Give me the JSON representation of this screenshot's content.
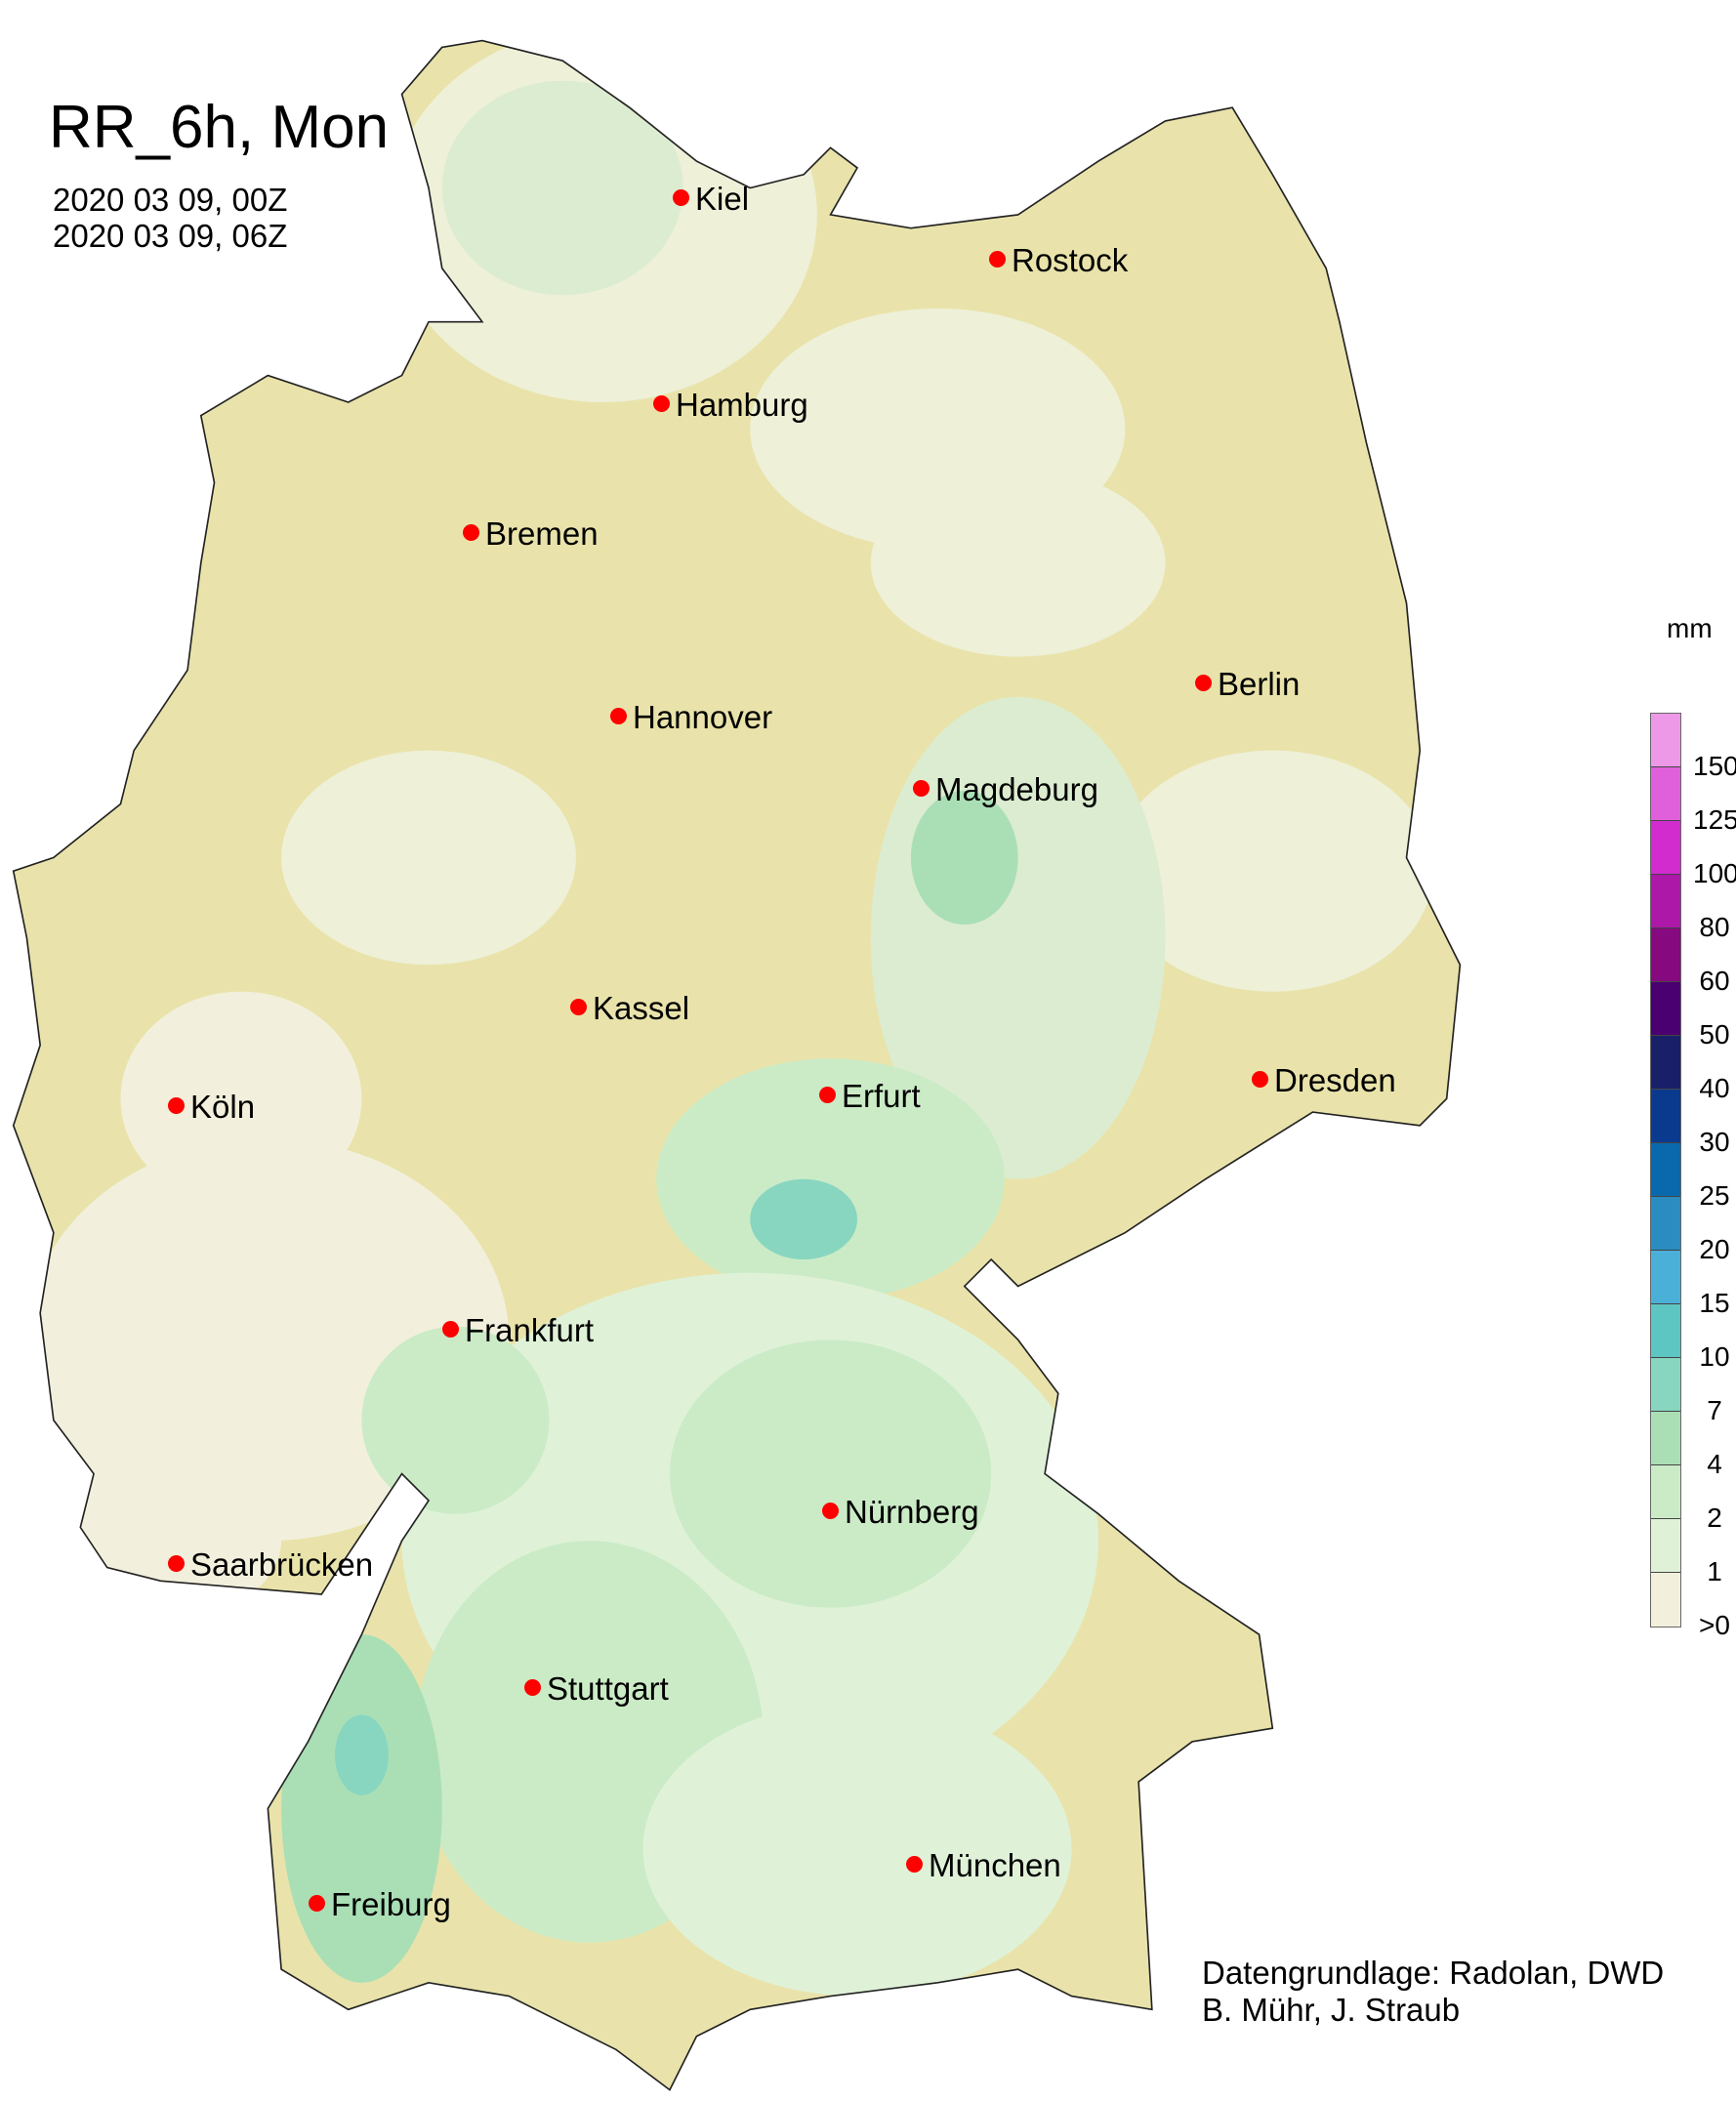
{
  "title": "RR_6h, Mon",
  "period": {
    "start": "2020 03 09, 00Z",
    "end": "2020 03 09, 06Z"
  },
  "legend": {
    "unit": "mm",
    "ticks": [
      "150",
      "125",
      "100",
      "80",
      "60",
      "50",
      "40",
      "30",
      "25",
      "20",
      "15",
      "10",
      "7",
      "4",
      "2",
      "1",
      ">0"
    ],
    "colors": [
      "#ee98e8",
      "#e060dc",
      "#d22ccf",
      "#ad18a8",
      "#86097f",
      "#4a0070",
      "#1a1f6a",
      "#0a3a8e",
      "#0a68ac",
      "#2a8cc0",
      "#4bb0d8",
      "#5ec6c2",
      "#88d6c0",
      "#aadfb6",
      "#cbebc6",
      "#dff2d8",
      "#f2f0dc"
    ]
  },
  "cities": [
    {
      "name": "Kiel"
    },
    {
      "name": "Rostock"
    },
    {
      "name": "Hamburg"
    },
    {
      "name": "Bremen"
    },
    {
      "name": "Hannover"
    },
    {
      "name": "Berlin"
    },
    {
      "name": "Magdeburg"
    },
    {
      "name": "Kassel"
    },
    {
      "name": "Erfurt"
    },
    {
      "name": "Dresden"
    },
    {
      "name": "Köln"
    },
    {
      "name": "Frankfurt"
    },
    {
      "name": "Nürnberg"
    },
    {
      "name": "Saarbrücken"
    },
    {
      "name": "Stuttgart"
    },
    {
      "name": "München"
    },
    {
      "name": "Freiburg"
    }
  ],
  "credits": {
    "line1": "Datengrundlage: Radolan, DWD",
    "line2": "B. Mühr, J. Straub"
  },
  "colors": {
    "city_marker": "#ff0000",
    "dry_tan": "#e9e3ab",
    "trace": "#f2f0dc",
    "light_green": "#cfe8c3"
  }
}
